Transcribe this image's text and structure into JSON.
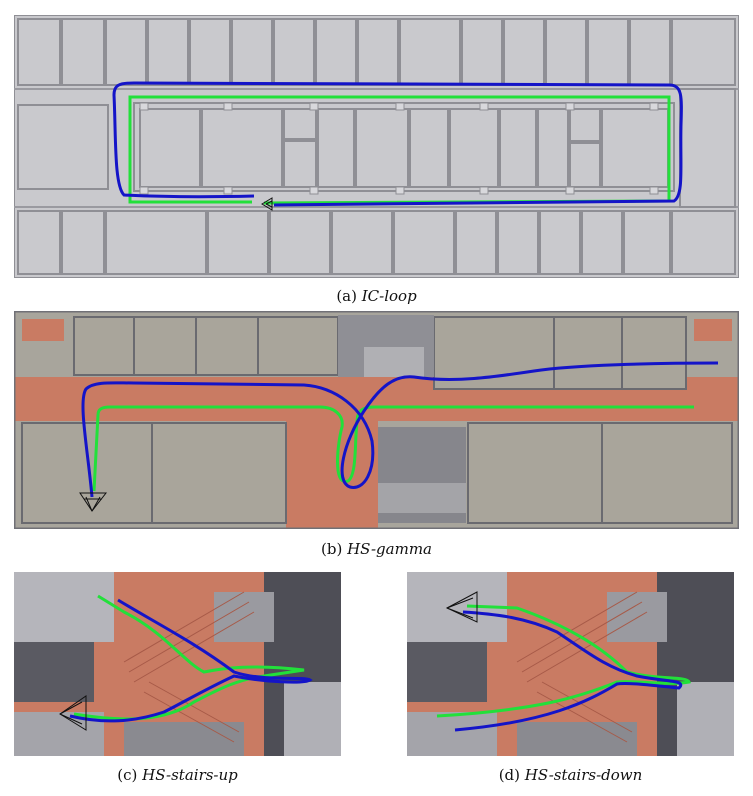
{
  "figure": {
    "panels": [
      {
        "label": "(a)",
        "name": "IC-loop"
      },
      {
        "label": "(b)",
        "name": "HS-gamma"
      },
      {
        "label": "(c)",
        "name": "HS-stairs-up"
      },
      {
        "label": "(d)",
        "name": "HS-stairs-down"
      }
    ],
    "colors": {
      "ground_truth": "#22e03a",
      "estimate": "#1414c8",
      "floor_gray": "#c8c8cc",
      "wall": "#8a8a90",
      "terracotta": "#c87a62",
      "room_beige": "#a9a59b"
    },
    "icons": [
      "camera-frustum-icon"
    ]
  }
}
